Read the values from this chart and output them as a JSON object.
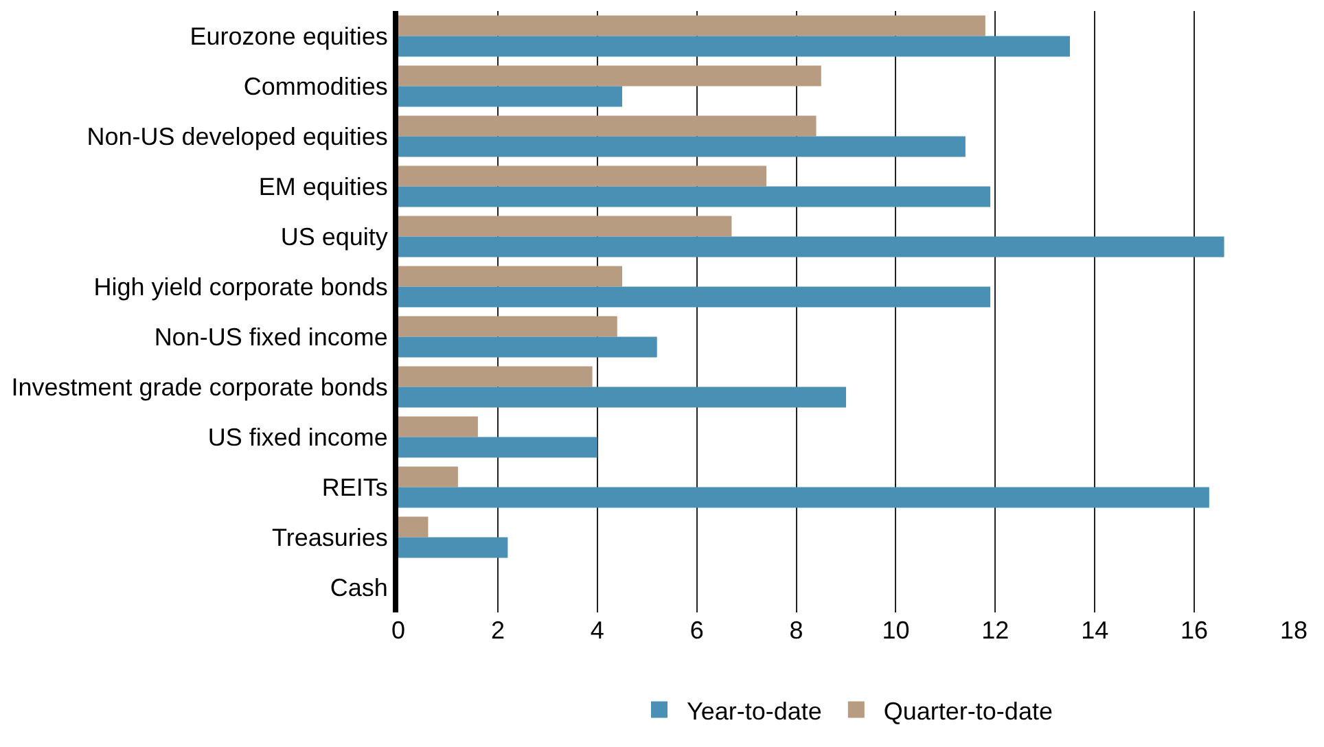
{
  "chart_data": {
    "type": "bar",
    "orientation": "horizontal",
    "categories": [
      "Eurozone equities",
      "Commodities",
      "Non-US developed equities",
      "EM equities",
      "US equity",
      "High yield corporate bonds",
      "Non-US fixed income",
      "Investment grade corporate bonds",
      "US fixed income",
      "REITs",
      "Treasuries",
      "Cash"
    ],
    "series": [
      {
        "name": "Year-to-date",
        "color": "#4a90b5",
        "values": [
          13.5,
          4.5,
          11.4,
          11.9,
          16.6,
          11.9,
          5.2,
          9.0,
          4.0,
          16.3,
          2.2,
          0
        ]
      },
      {
        "name": "Quarter-to-date",
        "color": "#b89c82",
        "values": [
          11.8,
          8.5,
          8.4,
          7.4,
          6.7,
          4.5,
          4.4,
          3.9,
          1.6,
          1.2,
          0.6,
          0
        ]
      }
    ],
    "xlim": [
      0,
      18
    ],
    "xticks": [
      0,
      2,
      4,
      6,
      8,
      10,
      12,
      14,
      16,
      18
    ],
    "grid": "x",
    "legend": "bottom"
  }
}
